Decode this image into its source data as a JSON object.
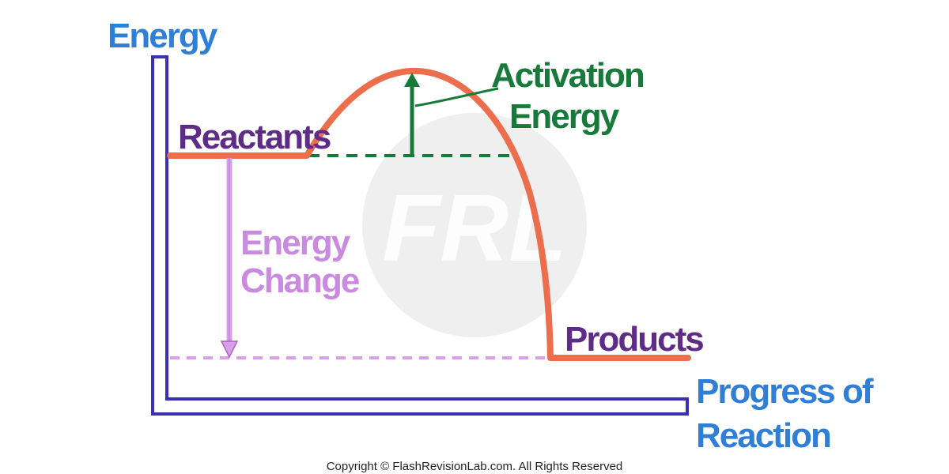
{
  "colors": {
    "axis": "#3a30b0",
    "axis_label": "#2f7fd6",
    "curve": "#ec6e4c",
    "state_label": "#5e2c86",
    "activation": "#177a3b",
    "energy_change": "#d9a0e8",
    "energy_change_text": "#c98ae0",
    "watermark": "#efefef"
  },
  "labels": {
    "y_axis": "Energy",
    "x_axis_line1": "Progress of",
    "x_axis_line2": "Reaction",
    "reactants": "Reactants",
    "products": "Products",
    "activation_line1": "Activation",
    "activation_line2": "Energy",
    "energy_change_line1": "Energy",
    "energy_change_line2": "Change"
  },
  "watermark": {
    "text": "FRL"
  },
  "footer": {
    "copyright": "Copyright © FlashRevisionLab.com. All Rights Reserved"
  }
}
